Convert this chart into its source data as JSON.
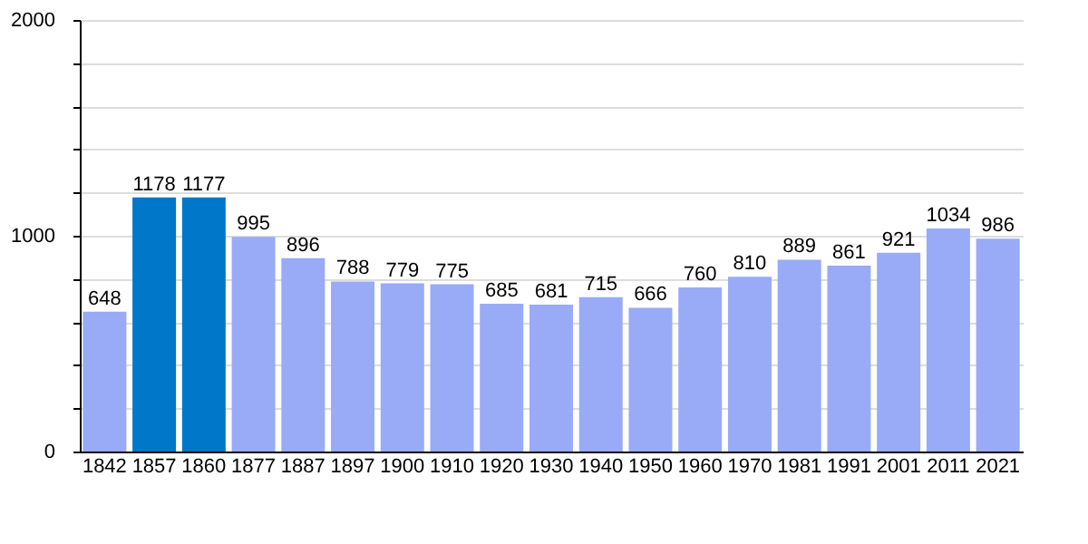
{
  "chart_data": {
    "type": "bar",
    "categories": [
      "1842",
      "1857",
      "1860",
      "1877",
      "1887",
      "1897",
      "1900",
      "1910",
      "1920",
      "1930",
      "1940",
      "1950",
      "1960",
      "1970",
      "1981",
      "1991",
      "2001",
      "2011",
      "2021"
    ],
    "values": [
      648,
      1178,
      1177,
      995,
      896,
      788,
      779,
      775,
      685,
      681,
      715,
      666,
      760,
      810,
      889,
      861,
      921,
      1034,
      986
    ],
    "colors": [
      "#99aaf7",
      "#0077c8",
      "#0077c8",
      "#99aaf7",
      "#99aaf7",
      "#99aaf7",
      "#99aaf7",
      "#99aaf7",
      "#99aaf7",
      "#99aaf7",
      "#99aaf7",
      "#99aaf7",
      "#99aaf7",
      "#99aaf7",
      "#99aaf7",
      "#99aaf7",
      "#99aaf7",
      "#99aaf7",
      "#99aaf7"
    ],
    "ylim": [
      0,
      2000
    ],
    "yticks": [
      0,
      {
        "value": 200,
        "label": null
      },
      {
        "value": 400,
        "label": null
      },
      {
        "value": 600,
        "label": null
      },
      {
        "value": 800,
        "label": null
      },
      1000,
      {
        "value": 1200,
        "label": null
      },
      {
        "value": 1400,
        "label": null
      },
      {
        "value": 1600,
        "label": null
      },
      {
        "value": 1800,
        "label": null
      },
      2000
    ],
    "grid": "y",
    "data_labels": true
  }
}
